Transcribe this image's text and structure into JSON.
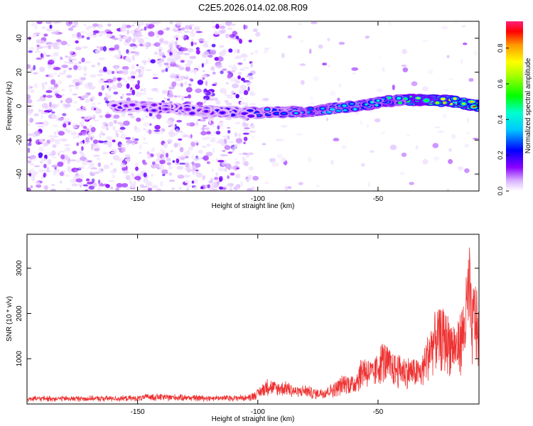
{
  "title": "C2E5.2026.014.02.08.R09",
  "chart_data": [
    {
      "type": "heatmap",
      "xlabel": "Height of straight line (km)",
      "ylabel": "Frequency (Hz)",
      "xlim": [
        -196,
        -8
      ],
      "ylim": [
        -50,
        50
      ],
      "xticks": [
        -150,
        -100,
        -50
      ],
      "yticks": [
        -40,
        -20,
        0,
        20,
        40
      ],
      "colorbar": {
        "label": "Normalized spectral amplitude",
        "range": [
          0,
          0.95
        ],
        "ticks": [
          0.0,
          0.2,
          0.4,
          0.6,
          0.8
        ]
      },
      "ridge": {
        "description_points_x": [
          -196,
          -150,
          -120,
          -100,
          -80,
          -60,
          -40,
          -20,
          -8
        ],
        "description_points_y": [
          -2,
          0,
          -3,
          -4,
          -3,
          0,
          4,
          3,
          0
        ]
      }
    },
    {
      "type": "line",
      "xlabel": "Height of straight line (km)",
      "ylabel": "SNR (10 * v/v)",
      "xlim": [
        -196,
        -8
      ],
      "ylim": [
        0,
        3750
      ],
      "xticks": [
        -150,
        -100,
        -50
      ],
      "yticks": [
        1000,
        2000,
        3000
      ],
      "color": "#ee3333",
      "series": [
        {
          "name": "SNR",
          "x": [
            -196,
            -150,
            -145,
            -120,
            -104,
            -100,
            -96,
            -92,
            -88,
            -84,
            -80,
            -76,
            -72,
            -68,
            -64,
            -60,
            -56,
            -52,
            -48,
            -44,
            -40,
            -36,
            -32,
            -29,
            -26,
            -23,
            -20,
            -17,
            -14,
            -12,
            -11,
            -10,
            -9,
            -8
          ],
          "y": [
            140,
            150,
            200,
            160,
            170,
            300,
            550,
            450,
            500,
            350,
            400,
            300,
            350,
            450,
            650,
            600,
            1100,
            900,
            1400,
            1100,
            1050,
            1000,
            950,
            1600,
            2050,
            2100,
            1900,
            1750,
            2400,
            3650,
            2200,
            2900,
            2500,
            2100
          ]
        }
      ]
    }
  ]
}
